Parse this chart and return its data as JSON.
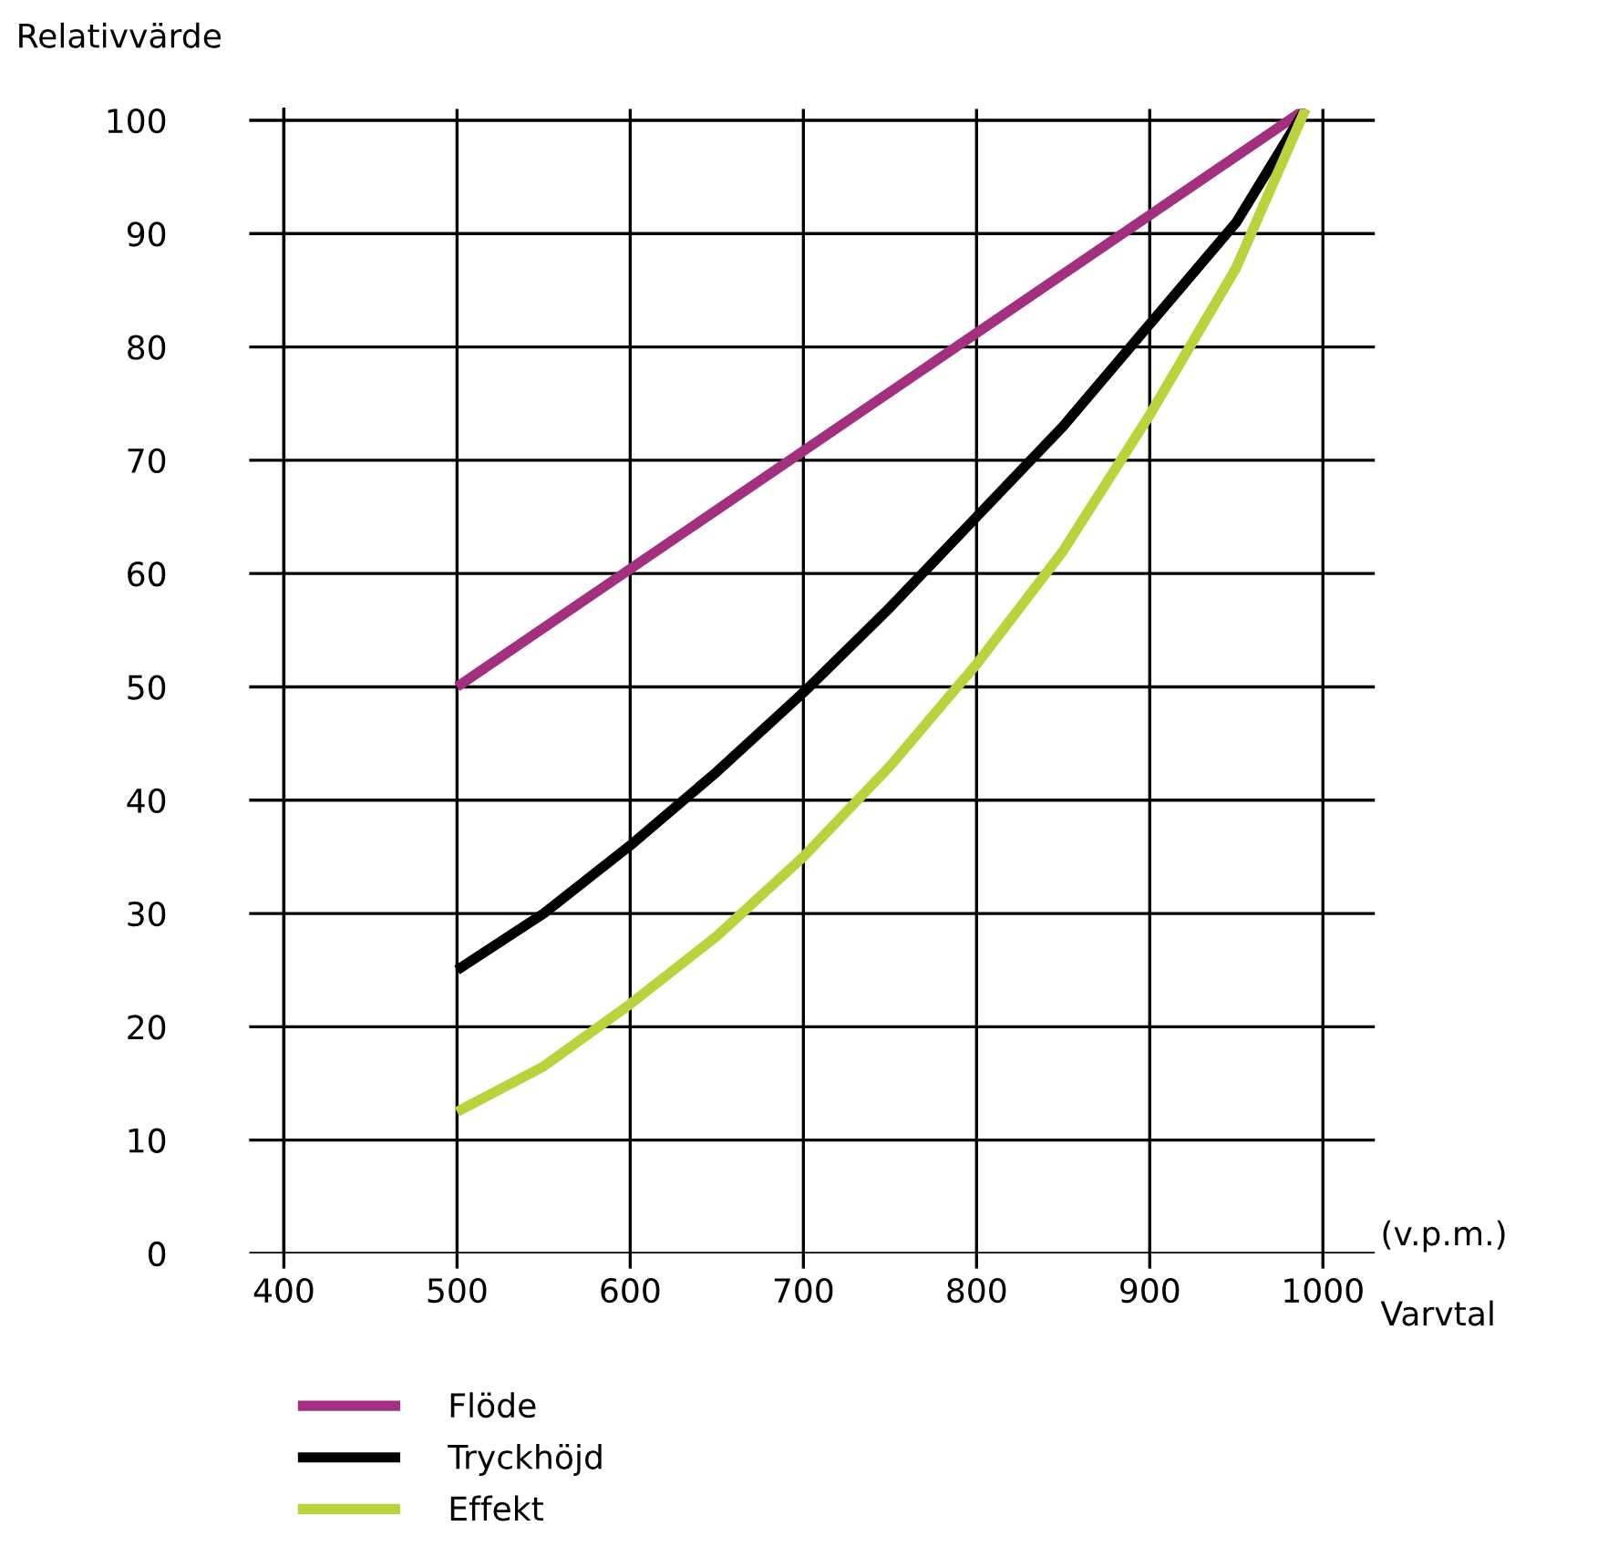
{
  "chart_data": {
    "type": "line",
    "ylabel": "Relativvärde",
    "xlabel": "Varvtal",
    "annotations": [
      "(v.p.m.)"
    ],
    "xlim": [
      380,
      1030
    ],
    "ylim": [
      0,
      101
    ],
    "xticks": [
      400,
      500,
      600,
      700,
      800,
      900,
      1000
    ],
    "yticks": [
      0,
      10,
      20,
      30,
      40,
      50,
      60,
      70,
      80,
      90,
      100
    ],
    "grid": true,
    "legend": "bottom",
    "marker": "none",
    "line_style": "solid",
    "series": [
      {
        "name": "Flöde",
        "color": "#a3307e",
        "x": [
          500,
          990
        ],
        "values": [
          50,
          101
        ]
      },
      {
        "name": "Tryckhöjd",
        "color": "#000000",
        "x": [
          500,
          550,
          600,
          650,
          700,
          750,
          800,
          850,
          900,
          950,
          990
        ],
        "values": [
          25,
          30,
          36,
          42.5,
          49.5,
          57,
          65,
          73,
          82,
          91,
          101
        ]
      },
      {
        "name": "Effekt",
        "color": "#bcd23c",
        "x": [
          500,
          550,
          600,
          650,
          700,
          750,
          800,
          850,
          900,
          950,
          990
        ],
        "values": [
          12.5,
          16.5,
          22,
          28,
          35,
          43,
          52,
          62,
          74,
          87,
          101
        ]
      }
    ]
  }
}
